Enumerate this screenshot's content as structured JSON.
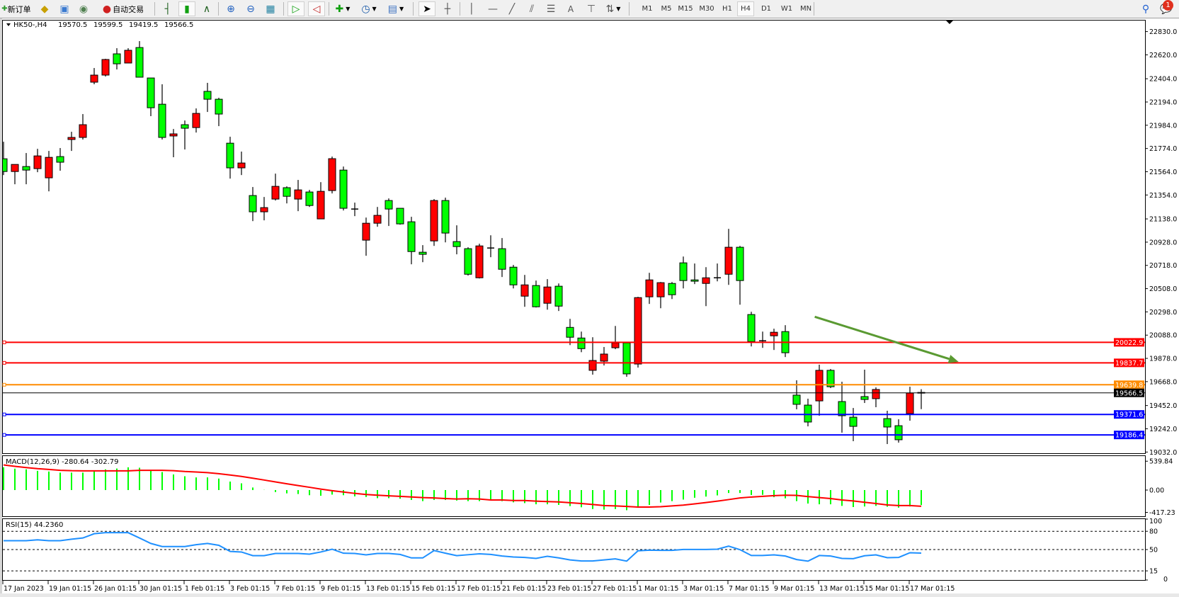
{
  "toolbar": {
    "new_order_label": "新订单",
    "auto_trading_label": "自动交易",
    "periods": [
      "M1",
      "M5",
      "M15",
      "M30",
      "H1",
      "H4",
      "D1",
      "W1",
      "MN"
    ],
    "active_period": "H4",
    "text_tool_label": "A",
    "notification_count": "1"
  },
  "chart_data": {
    "type": "candlestick",
    "header_symbol": "HK50-,H4",
    "ohlc_readout": [
      "19570.5",
      "19599.5",
      "19419.5",
      "19566.5"
    ],
    "colors": {
      "bull": "#ff0000",
      "bear": "#00ff00",
      "outline": "#000000"
    },
    "ylim": [
      18940,
      22930
    ],
    "candles_format": [
      "open",
      "high",
      "low",
      "close"
    ],
    "candles": [
      [
        21681,
        21835,
        21534,
        21566
      ],
      [
        21566,
        21630,
        21451,
        21630
      ],
      [
        21611,
        21733,
        21451,
        21579
      ],
      [
        21592,
        21771,
        21560,
        21707
      ],
      [
        21509,
        21752,
        21387,
        21694
      ],
      [
        21701,
        21778,
        21573,
        21650
      ],
      [
        21855,
        21925,
        21752,
        21874
      ],
      [
        21874,
        22085,
        21855,
        21989
      ],
      [
        22373,
        22501,
        22354,
        22437
      ],
      [
        22437,
        22584,
        22424,
        22578
      ],
      [
        22629,
        22680,
        22488,
        22539
      ],
      [
        22546,
        22680,
        22546,
        22661
      ],
      [
        22686,
        22744,
        22418,
        22418
      ],
      [
        22411,
        22411,
        22066,
        22142
      ],
      [
        22174,
        22354,
        21855,
        21874
      ],
      [
        21887,
        21950,
        21695,
        21906
      ],
      [
        21989,
        22027,
        21765,
        21957
      ],
      [
        21963,
        22136,
        21918,
        22091
      ],
      [
        22290,
        22367,
        22104,
        22219
      ],
      [
        22219,
        22232,
        21976,
        22085
      ],
      [
        21822,
        21880,
        21502,
        21599
      ],
      [
        21599,
        21746,
        21534,
        21643
      ],
      [
        21349,
        21426,
        21118,
        21202
      ],
      [
        21202,
        21336,
        21125,
        21240
      ],
      [
        21317,
        21547,
        21304,
        21432
      ],
      [
        21420,
        21432,
        21278,
        21342
      ],
      [
        21317,
        21490,
        21208,
        21400
      ],
      [
        21381,
        21400,
        21246,
        21259
      ],
      [
        21138,
        21470,
        21138,
        21387
      ],
      [
        21394,
        21701,
        21368,
        21682
      ],
      [
        21579,
        21611,
        21214,
        21234
      ],
      [
        21227,
        21285,
        21163,
        21227
      ],
      [
        20946,
        21150,
        20805,
        21099
      ],
      [
        21099,
        21246,
        21067,
        21170
      ],
      [
        21304,
        21323,
        21074,
        21227
      ],
      [
        21234,
        21234,
        21086,
        21093
      ],
      [
        21112,
        21157,
        20728,
        20843
      ],
      [
        20837,
        20901,
        20747,
        20818
      ],
      [
        20939,
        21317,
        20894,
        21304
      ],
      [
        21304,
        21330,
        20926,
        21010
      ],
      [
        20933,
        21080,
        20818,
        20888
      ],
      [
        20869,
        20882,
        20626,
        20638
      ],
      [
        20606,
        20914,
        20600,
        20894
      ],
      [
        20875,
        20990,
        20792,
        20875
      ],
      [
        20869,
        20965,
        20613,
        20683
      ],
      [
        20702,
        20722,
        20510,
        20542
      ],
      [
        20440,
        20632,
        20344,
        20542
      ],
      [
        20536,
        20581,
        20338,
        20344
      ],
      [
        20376,
        20594,
        20318,
        20523
      ],
      [
        20530,
        20555,
        20306,
        20350
      ],
      [
        20158,
        20235,
        19998,
        20069
      ],
      [
        20062,
        20120,
        19934,
        19966
      ],
      [
        19770,
        20069,
        19731,
        19859
      ],
      [
        19853,
        19981,
        19814,
        19917
      ],
      [
        19974,
        20171,
        19961,
        20018
      ],
      [
        20018,
        20018,
        19712,
        19738
      ],
      [
        19827,
        20434,
        19795,
        20427
      ],
      [
        20434,
        20651,
        20370,
        20587
      ],
      [
        20434,
        20568,
        20331,
        20562
      ],
      [
        20555,
        20568,
        20414,
        20453
      ],
      [
        20741,
        20798,
        20510,
        20581
      ],
      [
        20587,
        20735,
        20549,
        20575
      ],
      [
        20555,
        20702,
        20350,
        20606
      ],
      [
        20606,
        20735,
        20574,
        20606
      ],
      [
        20638,
        21048,
        20542,
        20882
      ],
      [
        20882,
        20894,
        20363,
        20581
      ],
      [
        20274,
        20299,
        19986,
        20030
      ],
      [
        20037,
        20120,
        19973,
        20037
      ],
      [
        20082,
        20146,
        19954,
        20114
      ],
      [
        20120,
        20178,
        19890,
        19929
      ],
      [
        19546,
        19680,
        19418,
        19463
      ],
      [
        19456,
        19514,
        19264,
        19303
      ],
      [
        19494,
        19821,
        19360,
        19770
      ],
      [
        19770,
        19782,
        19610,
        19622
      ],
      [
        19488,
        19667,
        19207,
        19360
      ],
      [
        19347,
        19430,
        19130,
        19264
      ],
      [
        19533,
        19776,
        19475,
        19507
      ],
      [
        19514,
        19616,
        19437,
        19597
      ],
      [
        19334,
        19405,
        19104,
        19258
      ],
      [
        19270,
        19328,
        19117,
        19143
      ],
      [
        19379,
        19622,
        19315,
        19565
      ],
      [
        19570.5,
        19599.5,
        19419.5,
        19566.5
      ]
    ],
    "price_ticks": [
      "22830.0",
      "22620.0",
      "22404.0",
      "22194.0",
      "21984.0",
      "21774.0",
      "21564.0",
      "21354.0",
      "21138.0",
      "20928.0",
      "20718.0",
      "20508.0",
      "20298.0",
      "20088.0",
      "19878.0",
      "19668.0",
      "19452.0",
      "19242.0",
      "19032.0"
    ],
    "price_lines": [
      {
        "price": "20022.9",
        "color": "#ff0000"
      },
      {
        "price": "19837.7",
        "color": "#ff0000"
      },
      {
        "price": "19639.8",
        "color": "#ff8c00"
      },
      {
        "price": "19566.5",
        "color": "#000000"
      },
      {
        "price": "19371.6",
        "color": "#0000ff"
      },
      {
        "price": "19186.4",
        "color": "#0000ff"
      }
    ],
    "arrow": {
      "from": {
        "bar": 71.6,
        "price": 20254
      },
      "to": {
        "bar": 84.3,
        "price": 19846
      },
      "color": "#5a9a32"
    },
    "time_labels": [
      "17 Jan 2023",
      "19 Jan 01:15",
      "26 Jan 01:15",
      "30 Jan 01:15",
      "1 Feb 01:15",
      "3 Feb 01:15",
      "7 Feb 01:15",
      "9 Feb 01:15",
      "13 Feb 01:15",
      "15 Feb 01:15",
      "17 Feb 01:15",
      "21 Feb 01:15",
      "23 Feb 01:15",
      "27 Feb 01:15",
      "1 Mar 01:15",
      "3 Mar 01:15",
      "7 Mar 01:15",
      "9 Mar 01:15",
      "13 Mar 01:15",
      "15 Mar 01:15",
      "17 Mar 01:15"
    ],
    "macd": {
      "label": "MACD(12,26,9) -280.64 -302.79",
      "histogram_color": "#00ff00",
      "signal_color": "#ff0000",
      "histogram": [
        426,
        400,
        388,
        359,
        347,
        326,
        326,
        326,
        359,
        388,
        403,
        426,
        418,
        359,
        337,
        292,
        259,
        237,
        237,
        215,
        159,
        126,
        48,
        3,
        -37,
        -62,
        -74,
        -96,
        -107,
        -85,
        -96,
        -118,
        -129,
        -152,
        -152,
        -162,
        -185,
        -207,
        -185,
        -185,
        -196,
        -207,
        -207,
        -178,
        -207,
        -229,
        -244,
        -266,
        -266,
        -278,
        -300,
        -322,
        -355,
        -366,
        -355,
        -377,
        -322,
        -278,
        -233,
        -207,
        -178,
        -144,
        -122,
        -100,
        -55,
        -55,
        -92,
        -89,
        -133,
        -155,
        -207,
        -252,
        -266,
        -266,
        -296,
        -318,
        -307,
        -296,
        -311,
        -329,
        -307,
        -280.64
      ],
      "signal": [
        470,
        444,
        421,
        400,
        385,
        370,
        362,
        359,
        359,
        359,
        359,
        359,
        370,
        370,
        370,
        362,
        347,
        337,
        326,
        307,
        281,
        255,
        222,
        188,
        152,
        118,
        85,
        52,
        18,
        -11,
        -37,
        -62,
        -82,
        -96,
        -107,
        -118,
        -129,
        -141,
        -148,
        -159,
        -167,
        -163,
        -167,
        -185,
        -185,
        -196,
        -196,
        -207,
        -215,
        -222,
        -237,
        -252,
        -270,
        -289,
        -296,
        -307,
        -318,
        -318,
        -311,
        -296,
        -281,
        -259,
        -233,
        -207,
        -178,
        -148,
        -130,
        -118,
        -104,
        -96,
        -100,
        -122,
        -141,
        -159,
        -185,
        -204,
        -229,
        -252,
        -278,
        -289,
        -289,
        -302.79
      ],
      "ticks": [
        "539.84",
        "0.00",
        "-417.23"
      ]
    },
    "rsi": {
      "label": "RSI(15) 44.2360",
      "color": "#1e90ff",
      "levels": [
        80,
        50,
        15
      ],
      "values": [
        64.5,
        64.5,
        64.5,
        66,
        64.5,
        64.5,
        67,
        69,
        76,
        77.7,
        77.7,
        77.7,
        69,
        60,
        55,
        55,
        55,
        58,
        60,
        57,
        47,
        46,
        40,
        40,
        43.6,
        43.6,
        43.6,
        42.5,
        46,
        50.6,
        44,
        43.6,
        41.3,
        43.6,
        43.6,
        42,
        36.3,
        36.3,
        48.3,
        44,
        40,
        41.5,
        43,
        42,
        39.4,
        37.8,
        37,
        35.5,
        39,
        36.3,
        33,
        31.3,
        31.3,
        33,
        34.7,
        31,
        48,
        49,
        48.7,
        48.7,
        50.2,
        50.2,
        50.2,
        50.6,
        55.6,
        49.8,
        40.2,
        40.2,
        41.3,
        39.4,
        33.6,
        31,
        40.2,
        39.4,
        35.5,
        35,
        39.8,
        41.3,
        36.7,
        37,
        44.8,
        44.236
      ],
      "ticks": [
        "100",
        "80",
        "50",
        "15",
        "0"
      ]
    }
  }
}
